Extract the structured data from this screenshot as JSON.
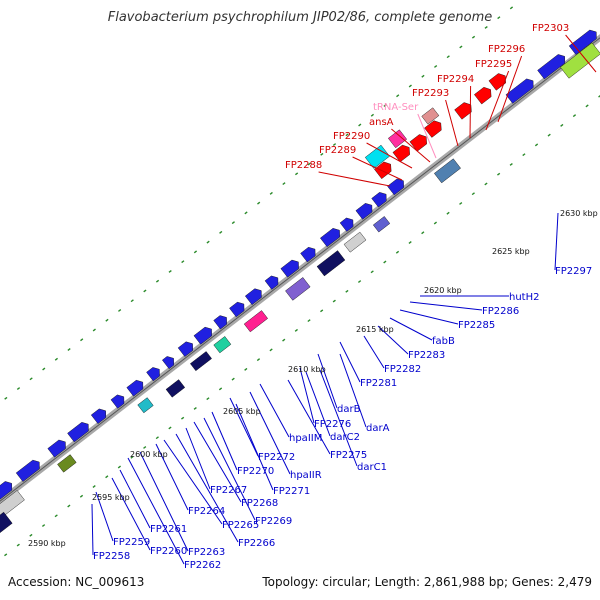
{
  "title": "Flavobacterium psychrophilum JIP02/86, complete genome",
  "footer": {
    "accession": "Accession: NC_009613",
    "summary": "Topology: circular; Length: 2,861,988 bp; Genes: 2,479"
  },
  "colors": {
    "forward_gene_label": "#d00000",
    "rna_label": "#ff8fbf",
    "reverse_gene_label": "#0000cc",
    "backbone": "#a8a8a8",
    "forward_strand": "#2020e0",
    "tick": "#2a8a2a"
  },
  "scale_labels": [
    "2590 kbp",
    "2595 kbp",
    "2600 kbp",
    "2605 kbp",
    "2610 kbp",
    "2615 kbp",
    "2620 kbp",
    "2625 kbp",
    "2630 kbp"
  ],
  "top_labels": [
    {
      "text": "FP2303",
      "kind": "gene"
    },
    {
      "text": "FP2296",
      "kind": "gene"
    },
    {
      "text": "FP2295",
      "kind": "gene"
    },
    {
      "text": "FP2294",
      "kind": "gene"
    },
    {
      "text": "FP2293",
      "kind": "gene"
    },
    {
      "text": "tRNA-Ser",
      "kind": "rna"
    },
    {
      "text": "ansA",
      "kind": "gene"
    },
    {
      "text": "FP2290",
      "kind": "gene"
    },
    {
      "text": "FP2289",
      "kind": "gene"
    },
    {
      "text": "FP2288",
      "kind": "gene"
    }
  ],
  "bottom_labels": [
    "FP2297",
    "hutH2",
    "FP2286",
    "FP2285",
    "fabB",
    "FP2283",
    "FP2282",
    "FP2281",
    "darB",
    "darA",
    "FP2276",
    "darC2",
    "FP2275",
    "darC1",
    "hpaIIM",
    "hpaIIR",
    "FP2272",
    "FP2271",
    "FP2270",
    "FP2269",
    "FP2268",
    "FP2267",
    "FP2266",
    "FP2265",
    "FP2264",
    "FP2263",
    "FP2262",
    "FP2261",
    "FP2260",
    "FP2259",
    "FP2258"
  ]
}
